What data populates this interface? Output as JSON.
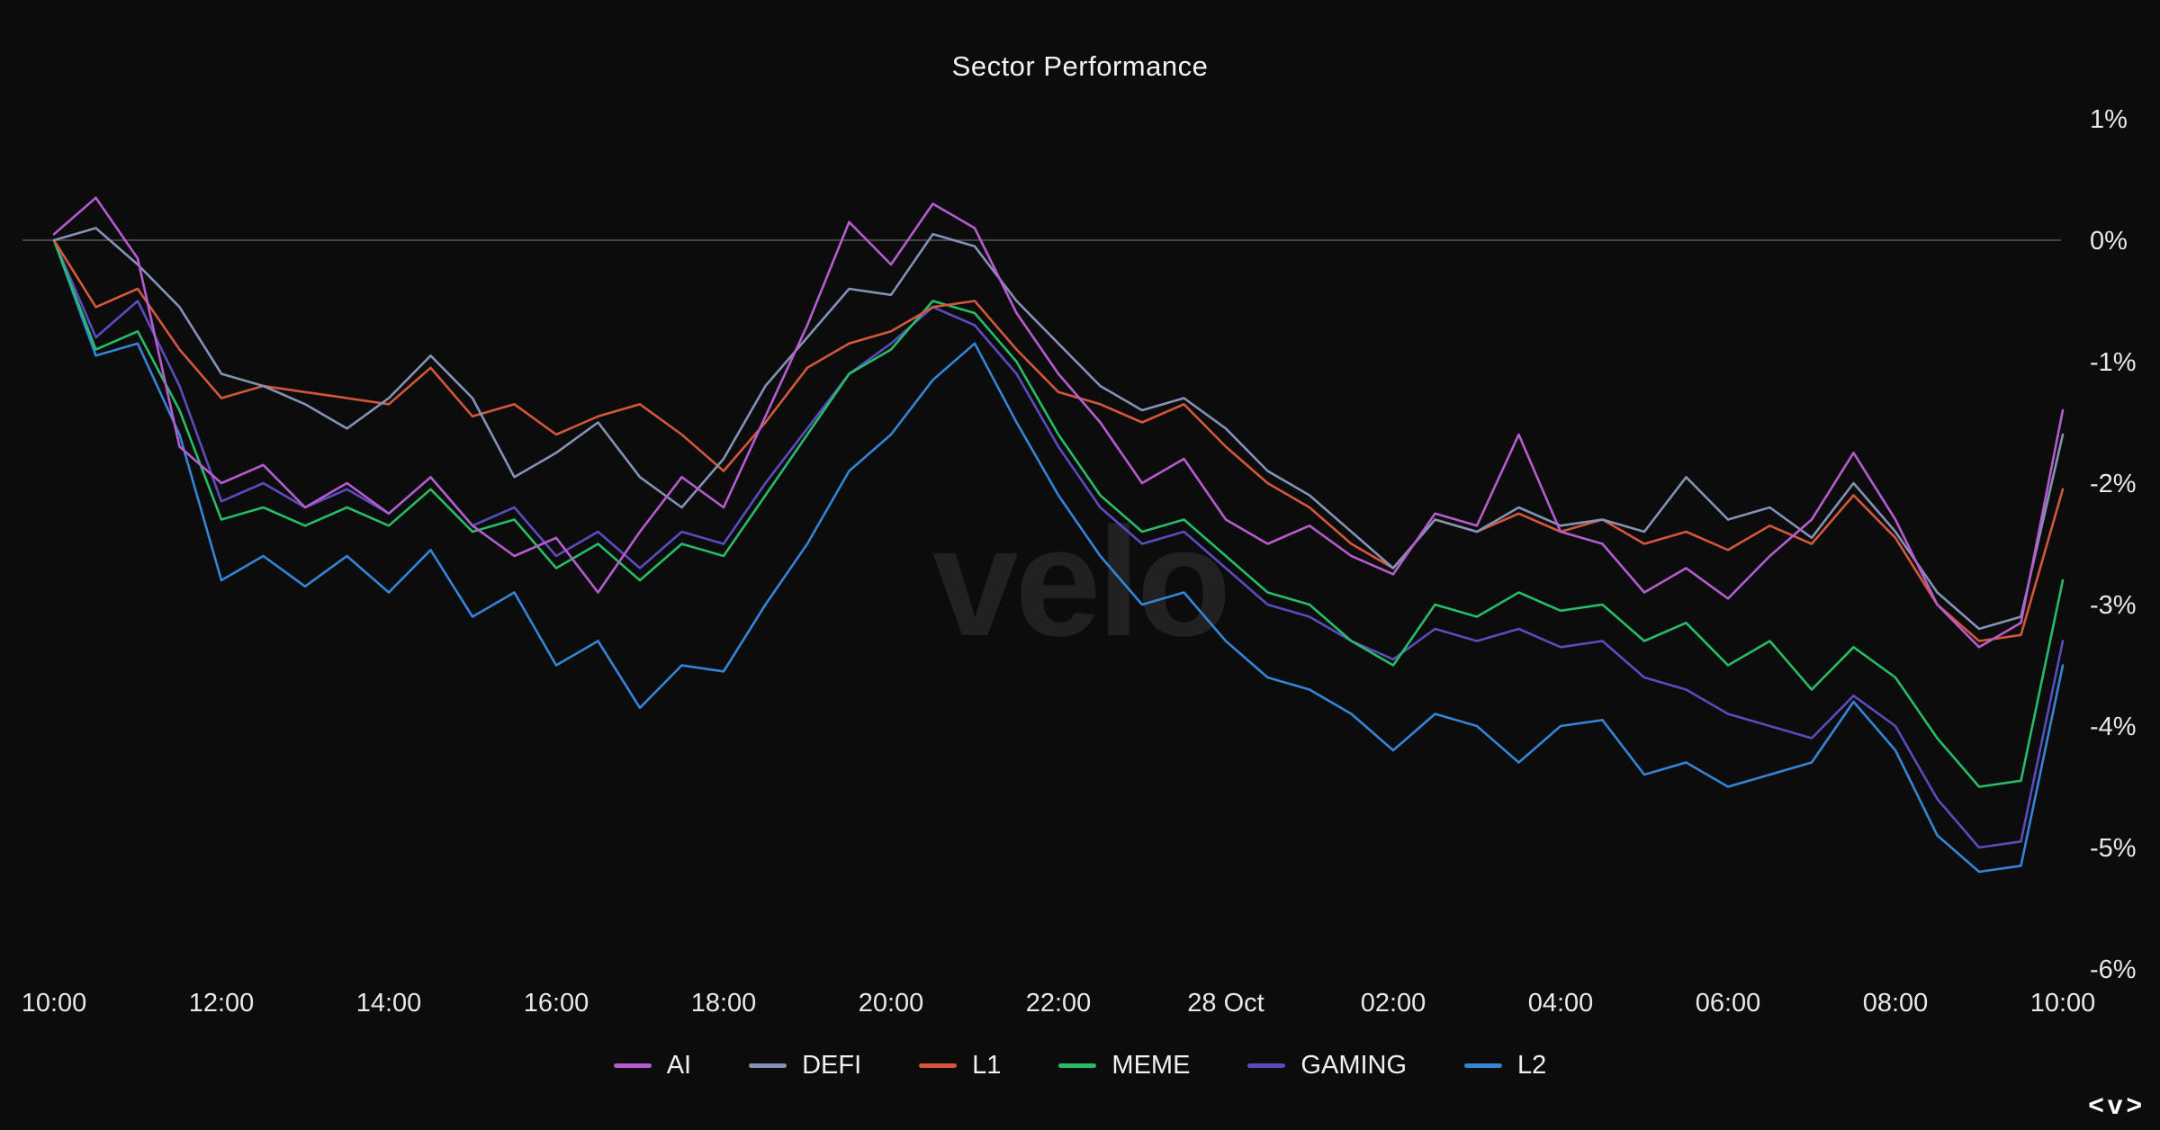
{
  "header": {
    "title": "Sector Performance"
  },
  "watermark": {
    "text": "velo"
  },
  "logo": {
    "text": "<v>"
  },
  "colors": {
    "background": "#0c0c0d",
    "grid_line": "#454545",
    "axis_text": "#e8e8e8",
    "title_text": "#f2f2f2",
    "watermark_text": "#212122"
  },
  "chart_data": {
    "type": "line",
    "title": "Sector Performance",
    "xlabel": "",
    "ylabel": "",
    "x_start_time": "10:00",
    "x_end_time": "10:00",
    "x_date_boundary_label": "28 Oct",
    "interval_hours": 0.5,
    "duration_hours": 24,
    "ylim": [
      -6.1,
      1.4
    ],
    "grid": "horizontal line at 0% only",
    "legend_position": "bottom-center",
    "yticks": [
      {
        "label": "1%",
        "value": 1
      },
      {
        "label": "0%",
        "value": 0
      },
      {
        "label": "-1%",
        "value": -1
      },
      {
        "label": "-2%",
        "value": -2
      },
      {
        "label": "-3%",
        "value": -3
      },
      {
        "label": "-4%",
        "value": -4
      },
      {
        "label": "-5%",
        "value": -5
      },
      {
        "label": "-6%",
        "value": -6
      }
    ],
    "x_ticks": [
      {
        "label": "10:00",
        "hour": 0
      },
      {
        "label": "12:00",
        "hour": 2
      },
      {
        "label": "14:00",
        "hour": 4
      },
      {
        "label": "16:00",
        "hour": 6
      },
      {
        "label": "18:00",
        "hour": 8
      },
      {
        "label": "20:00",
        "hour": 10
      },
      {
        "label": "22:00",
        "hour": 12
      },
      {
        "label": "28 Oct",
        "hour": 14
      },
      {
        "label": "02:00",
        "hour": 16
      },
      {
        "label": "04:00",
        "hour": 18
      },
      {
        "label": "06:00",
        "hour": 20
      },
      {
        "label": "08:00",
        "hour": 22
      },
      {
        "label": "10:00",
        "hour": 24
      }
    ],
    "series": [
      {
        "name": "AI",
        "color": "#b65ccf",
        "values": [
          0.05,
          0.35,
          -0.15,
          -1.7,
          -2.0,
          -1.85,
          -2.2,
          -2.0,
          -2.25,
          -1.95,
          -2.35,
          -2.6,
          -2.45,
          -2.9,
          -2.4,
          -1.95,
          -2.2,
          -1.45,
          -0.7,
          0.15,
          -0.2,
          0.3,
          0.1,
          -0.6,
          -1.1,
          -1.5,
          -2.0,
          -1.8,
          -2.3,
          -2.5,
          -2.35,
          -2.6,
          -2.75,
          -2.25,
          -2.35,
          -1.6,
          -2.4,
          -2.5,
          -2.9,
          -2.7,
          -2.95,
          -2.6,
          -2.3,
          -1.75,
          -2.3,
          -3.0,
          -3.35,
          -3.15,
          -1.4
        ]
      },
      {
        "name": "DEFI",
        "color": "#8293b5",
        "values": [
          0.0,
          0.1,
          -0.2,
          -0.55,
          -1.1,
          -1.2,
          -1.35,
          -1.55,
          -1.3,
          -0.95,
          -1.3,
          -1.95,
          -1.75,
          -1.5,
          -1.95,
          -2.2,
          -1.8,
          -1.2,
          -0.8,
          -0.4,
          -0.45,
          0.05,
          -0.05,
          -0.5,
          -0.85,
          -1.2,
          -1.4,
          -1.3,
          -1.55,
          -1.9,
          -2.1,
          -2.4,
          -2.7,
          -2.3,
          -2.4,
          -2.2,
          -2.35,
          -2.3,
          -2.4,
          -1.95,
          -2.3,
          -2.2,
          -2.45,
          -2.0,
          -2.4,
          -2.9,
          -3.2,
          -3.1,
          -1.6
        ]
      },
      {
        "name": "L1",
        "color": "#d4573b",
        "values": [
          0.0,
          -0.55,
          -0.4,
          -0.9,
          -1.3,
          -1.2,
          -1.25,
          -1.3,
          -1.35,
          -1.05,
          -1.45,
          -1.35,
          -1.6,
          -1.45,
          -1.35,
          -1.6,
          -1.9,
          -1.5,
          -1.05,
          -0.85,
          -0.75,
          -0.55,
          -0.5,
          -0.9,
          -1.25,
          -1.35,
          -1.5,
          -1.35,
          -1.7,
          -2.0,
          -2.2,
          -2.5,
          -2.7,
          -2.3,
          -2.4,
          -2.25,
          -2.4,
          -2.3,
          -2.5,
          -2.4,
          -2.55,
          -2.35,
          -2.5,
          -2.1,
          -2.45,
          -3.0,
          -3.3,
          -3.25,
          -2.05
        ]
      },
      {
        "name": "MEME",
        "color": "#26bd66",
        "values": [
          0.0,
          -0.9,
          -0.75,
          -1.4,
          -2.3,
          -2.2,
          -2.35,
          -2.2,
          -2.35,
          -2.05,
          -2.4,
          -2.3,
          -2.7,
          -2.5,
          -2.8,
          -2.5,
          -2.6,
          -2.1,
          -1.6,
          -1.1,
          -0.9,
          -0.5,
          -0.6,
          -1.0,
          -1.6,
          -2.1,
          -2.4,
          -2.3,
          -2.6,
          -2.9,
          -3.0,
          -3.3,
          -3.5,
          -3.0,
          -3.1,
          -2.9,
          -3.05,
          -3.0,
          -3.3,
          -3.15,
          -3.5,
          -3.3,
          -3.7,
          -3.35,
          -3.6,
          -4.1,
          -4.5,
          -4.45,
          -2.8
        ]
      },
      {
        "name": "GAMING",
        "color": "#5a4cbe",
        "values": [
          0.0,
          -0.8,
          -0.5,
          -1.2,
          -2.15,
          -2.0,
          -2.2,
          -2.05,
          -2.25,
          -1.95,
          -2.35,
          -2.2,
          -2.6,
          -2.4,
          -2.7,
          -2.4,
          -2.5,
          -2.0,
          -1.55,
          -1.1,
          -0.85,
          -0.55,
          -0.7,
          -1.1,
          -1.7,
          -2.2,
          -2.5,
          -2.4,
          -2.7,
          -3.0,
          -3.1,
          -3.3,
          -3.45,
          -3.2,
          -3.3,
          -3.2,
          -3.35,
          -3.3,
          -3.6,
          -3.7,
          -3.9,
          -4.0,
          -4.1,
          -3.75,
          -4.0,
          -4.6,
          -5.0,
          -4.95,
          -3.3
        ]
      },
      {
        "name": "L2",
        "color": "#3585d6",
        "values": [
          0.0,
          -0.95,
          -0.85,
          -1.6,
          -2.8,
          -2.6,
          -2.85,
          -2.6,
          -2.9,
          -2.55,
          -3.1,
          -2.9,
          -3.5,
          -3.3,
          -3.85,
          -3.5,
          -3.55,
          -3.0,
          -2.5,
          -1.9,
          -1.6,
          -1.15,
          -0.85,
          -1.5,
          -2.1,
          -2.6,
          -3.0,
          -2.9,
          -3.3,
          -3.6,
          -3.7,
          -3.9,
          -4.2,
          -3.9,
          -4.0,
          -4.3,
          -4.0,
          -3.95,
          -4.4,
          -4.3,
          -4.5,
          -4.4,
          -4.3,
          -3.8,
          -4.2,
          -4.9,
          -5.2,
          -5.15,
          -3.5
        ]
      }
    ]
  }
}
